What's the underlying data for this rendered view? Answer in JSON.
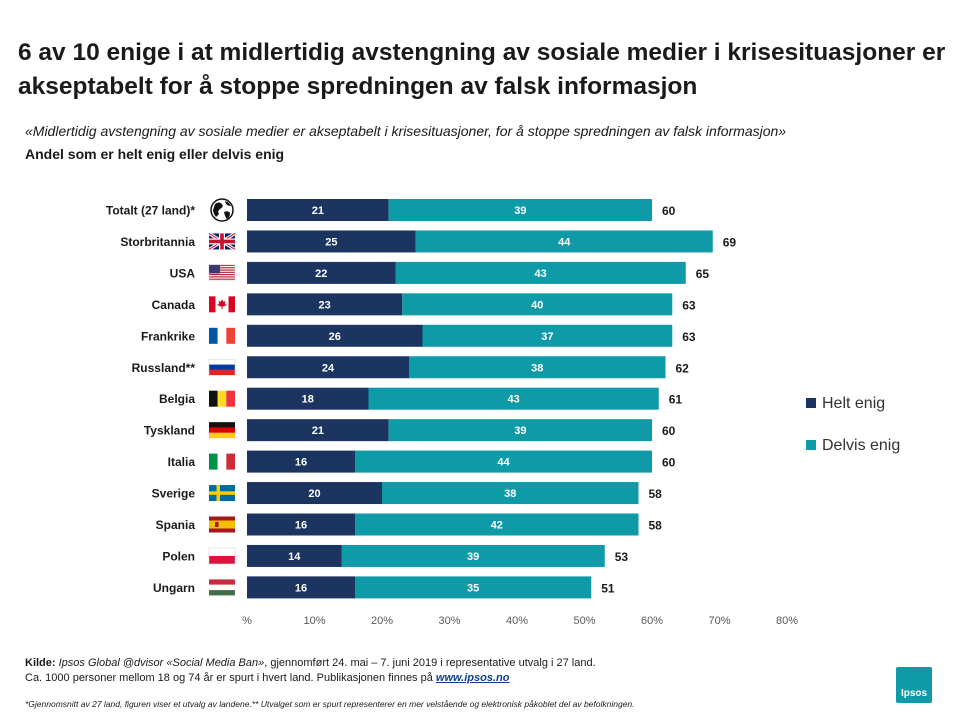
{
  "title": "6 av 10 enige i at midlertidig avstengning av sosiale medier i krisesituasjoner er akseptabelt for å stoppe spredningen av falsk informasjon",
  "subtitle": "«Midlertidig avstengning av sosiale medier er akseptabelt i krisesituasjoner, for å stoppe spredningen av falsk informasjon»",
  "subtitle2": "Andel som er helt enig eller delvis enig",
  "colors": {
    "helt": "#1c3560",
    "delvis": "#0e9aa7"
  },
  "chart_data": {
    "type": "bar",
    "orientation": "horizontal",
    "stacked": true,
    "categories": [
      "Totalt (27 land)*",
      "Storbritannia",
      "USA",
      "Canada",
      "Frankrike",
      "Russland**",
      "Belgia",
      "Tyskland",
      "Italia",
      "Sverige",
      "Spania",
      "Polen",
      "Ungarn"
    ],
    "series": [
      {
        "name": "Helt enig",
        "values": [
          21,
          25,
          22,
          23,
          26,
          24,
          18,
          21,
          16,
          20,
          16,
          14,
          16
        ]
      },
      {
        "name": "Delvis enig",
        "values": [
          39,
          44,
          43,
          40,
          37,
          38,
          43,
          39,
          44,
          38,
          42,
          39,
          35
        ]
      }
    ],
    "totals": [
      60,
      69,
      65,
      63,
      63,
      62,
      61,
      60,
      60,
      58,
      58,
      53,
      51
    ],
    "xlim": [
      0,
      80
    ],
    "ticks": [
      0,
      10,
      20,
      30,
      40,
      50,
      60,
      70,
      80
    ],
    "tick_labels": [
      "%",
      "10%",
      "20%",
      "30%",
      "40%",
      "50%",
      "60%",
      "70%",
      "80%"
    ],
    "icons": [
      "globe-icon",
      "flag-uk-icon",
      "flag-usa-icon",
      "flag-canada-icon",
      "flag-france-icon",
      "flag-russia-icon",
      "flag-belgium-icon",
      "flag-germany-icon",
      "flag-italy-icon",
      "flag-sweden-icon",
      "flag-spain-icon",
      "flag-poland-icon",
      "flag-hungary-icon"
    ],
    "legend_position": "right"
  },
  "footer": {
    "source_label": "Kilde:",
    "source_name": "Ipsos Global @dvisor «Social Media Ban»",
    "source_rest": ", gjennomført 24. mai – 7. juni 2019 i representative utvalg i 27 land.",
    "line2": "Ca. 1000 personer mellom 18 og 74 år er spurt i hvert land. Publikasjonen finnes på",
    "link": "www.ipsos.no",
    "footnote": "*Gjennomsnitt av 27 land, figuren viser et utvalg av landene.** Utvalget som er spurt representerer en mer velstående og elektronisk påkoblet del av befolkningen."
  },
  "logo_text": "Ipsos"
}
